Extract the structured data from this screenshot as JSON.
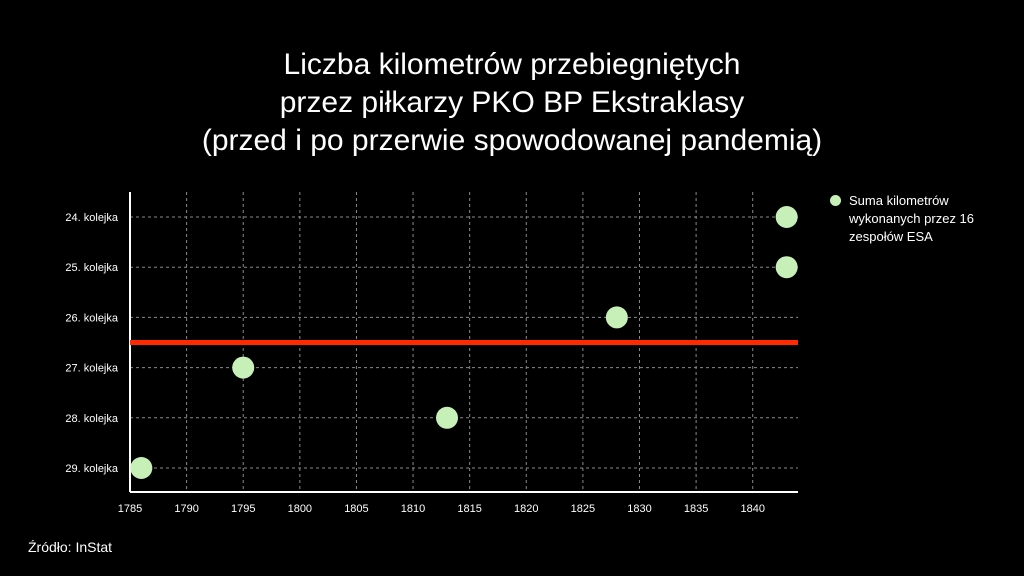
{
  "chart_data": {
    "type": "scatter",
    "title_lines": [
      "Liczba kilometrów przebiegniętych",
      "przez piłkarzy PKO BP Ekstraklasy",
      "(przed i po przerwie spowodowanej pandemią)"
    ],
    "categories": [
      "24. kolejka",
      "25. kolejka",
      "26. kolejka",
      "27. kolejka",
      "28. kolejka",
      "29. kolejka"
    ],
    "x_ticks": [
      1785,
      1790,
      1795,
      1800,
      1805,
      1810,
      1815,
      1820,
      1825,
      1830,
      1835,
      1840
    ],
    "xlim": [
      1785,
      1844
    ],
    "series": [
      {
        "name": "Suma kilometrów wykonanych przez 16 zespołów ESA",
        "color": "#c6f0b8",
        "points": [
          {
            "category": "24. kolejka",
            "x": 1843
          },
          {
            "category": "25. kolejka",
            "x": 1843
          },
          {
            "category": "26. kolejka",
            "x": 1828
          },
          {
            "category": "27. kolejka",
            "x": 1795
          },
          {
            "category": "28. kolejka",
            "x": 1813
          },
          {
            "category": "29. kolejka",
            "x": 1786
          }
        ]
      }
    ],
    "reference_line": {
      "between": [
        "26. kolejka",
        "27. kolejka"
      ],
      "color": "#ff2a00"
    },
    "grid": true,
    "grid_color": "#8a8a8a",
    "legend_position": "right",
    "source": "Źródło: InStat"
  }
}
